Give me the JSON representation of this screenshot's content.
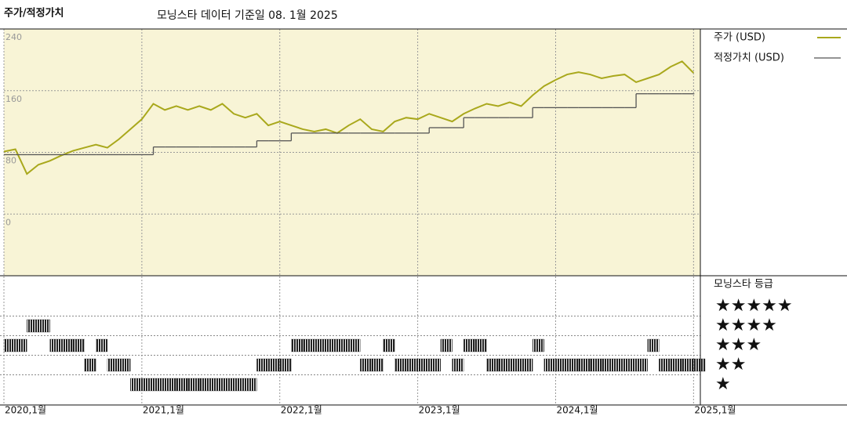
{
  "chart_data": [
    {
      "type": "line",
      "title": "주가/적정가치",
      "subtitle": "모닝스타 데이터 기준일 08. 1월 2025",
      "x": [
        "2020-01",
        "2020-02",
        "2020-03",
        "2020-04",
        "2020-05",
        "2020-06",
        "2020-07",
        "2020-08",
        "2020-09",
        "2020-10",
        "2020-11",
        "2020-12",
        "2021-01",
        "2021-02",
        "2021-03",
        "2021-04",
        "2021-05",
        "2021-06",
        "2021-07",
        "2021-08",
        "2021-09",
        "2021-10",
        "2021-11",
        "2021-12",
        "2022-01",
        "2022-02",
        "2022-03",
        "2022-04",
        "2022-05",
        "2022-06",
        "2022-07",
        "2022-08",
        "2022-09",
        "2022-10",
        "2022-11",
        "2022-12",
        "2023-01",
        "2023-02",
        "2023-03",
        "2023-04",
        "2023-05",
        "2023-06",
        "2023-07",
        "2023-08",
        "2023-09",
        "2023-10",
        "2023-11",
        "2023-12",
        "2024-01",
        "2024-02",
        "2024-03",
        "2024-04",
        "2024-05",
        "2024-06",
        "2024-07",
        "2024-08",
        "2024-09",
        "2024-10",
        "2024-11",
        "2024-12",
        "2025-01"
      ],
      "series": [
        {
          "name": "주가 (USD)",
          "color": "#a9a81c",
          "style": "line",
          "values": [
            81,
            84,
            52,
            64,
            69,
            76,
            82,
            86,
            90,
            86,
            97,
            110,
            123,
            143,
            135,
            140,
            135,
            140,
            135,
            143,
            130,
            125,
            130,
            115,
            120,
            115,
            110,
            107,
            110,
            105,
            115,
            123,
            110,
            107,
            120,
            125,
            123,
            130,
            125,
            120,
            130,
            137,
            143,
            140,
            145,
            140,
            154,
            166,
            174,
            181,
            184,
            181,
            176,
            179,
            181,
            171,
            176,
            181,
            191,
            198,
            183
          ]
        },
        {
          "name": "적정가치 (USD)",
          "color": "#555555",
          "style": "step",
          "values": [
            77,
            77,
            77,
            77,
            77,
            77,
            77,
            77,
            77,
            77,
            77,
            77,
            77,
            87,
            87,
            87,
            87,
            87,
            87,
            87,
            87,
            87,
            95,
            95,
            95,
            105,
            105,
            105,
            105,
            105,
            105,
            105,
            105,
            105,
            105,
            105,
            105,
            112,
            112,
            112,
            125,
            125,
            125,
            125,
            125,
            125,
            138,
            138,
            138,
            138,
            138,
            138,
            138,
            138,
            138,
            156,
            156,
            156,
            156,
            156,
            156
          ]
        }
      ],
      "xlim": [
        "2020-01",
        "2025-02"
      ],
      "xticks": [
        {
          "value": "2020-01",
          "label": "2020,1월"
        },
        {
          "value": "2021-01",
          "label": "2021,1월"
        },
        {
          "value": "2022-01",
          "label": "2022,1월"
        },
        {
          "value": "2023-01",
          "label": "2023,1월"
        },
        {
          "value": "2024-01",
          "label": "2024,1월"
        },
        {
          "value": "2025-01",
          "label": "2025,1월"
        }
      ],
      "ylim": [
        -80,
        240
      ],
      "yticks": [
        0,
        80,
        160,
        240
      ],
      "grid": true,
      "background": "#f8f4d6"
    },
    {
      "type": "rating",
      "title": "모닝스타 등급",
      "categories": [
        "★",
        "★★",
        "★★★",
        "★★★★",
        "★★★★★"
      ],
      "x": [
        "2020-01",
        "2020-02",
        "2020-03",
        "2020-04",
        "2020-05",
        "2020-06",
        "2020-07",
        "2020-08",
        "2020-09",
        "2020-10",
        "2020-11",
        "2020-12",
        "2021-01",
        "2021-02",
        "2021-03",
        "2021-04",
        "2021-05",
        "2021-06",
        "2021-07",
        "2021-08",
        "2021-09",
        "2021-10",
        "2021-11",
        "2021-12",
        "2022-01",
        "2022-02",
        "2022-03",
        "2022-04",
        "2022-05",
        "2022-06",
        "2022-07",
        "2022-08",
        "2022-09",
        "2022-10",
        "2022-11",
        "2022-12",
        "2023-01",
        "2023-02",
        "2023-03",
        "2023-04",
        "2023-05",
        "2023-06",
        "2023-07",
        "2023-08",
        "2023-09",
        "2023-10",
        "2023-11",
        "2023-12",
        "2024-01",
        "2024-02",
        "2024-03",
        "2024-04",
        "2024-05",
        "2024-06",
        "2024-07",
        "2024-08",
        "2024-09",
        "2024-10",
        "2024-11",
        "2024-12",
        "2025-01"
      ],
      "values": [
        3,
        3,
        4,
        4,
        3,
        3,
        3,
        2,
        3,
        2,
        2,
        1,
        1,
        1,
        1,
        1,
        1,
        1,
        1,
        1,
        1,
        1,
        2,
        2,
        2,
        3,
        3,
        3,
        3,
        3,
        3,
        2,
        2,
        3,
        2,
        2,
        2,
        2,
        3,
        2,
        3,
        3,
        2,
        2,
        2,
        2,
        3,
        2,
        2,
        2,
        2,
        2,
        2,
        2,
        2,
        2,
        3,
        2,
        2,
        2,
        2
      ],
      "color": "#222222"
    }
  ]
}
